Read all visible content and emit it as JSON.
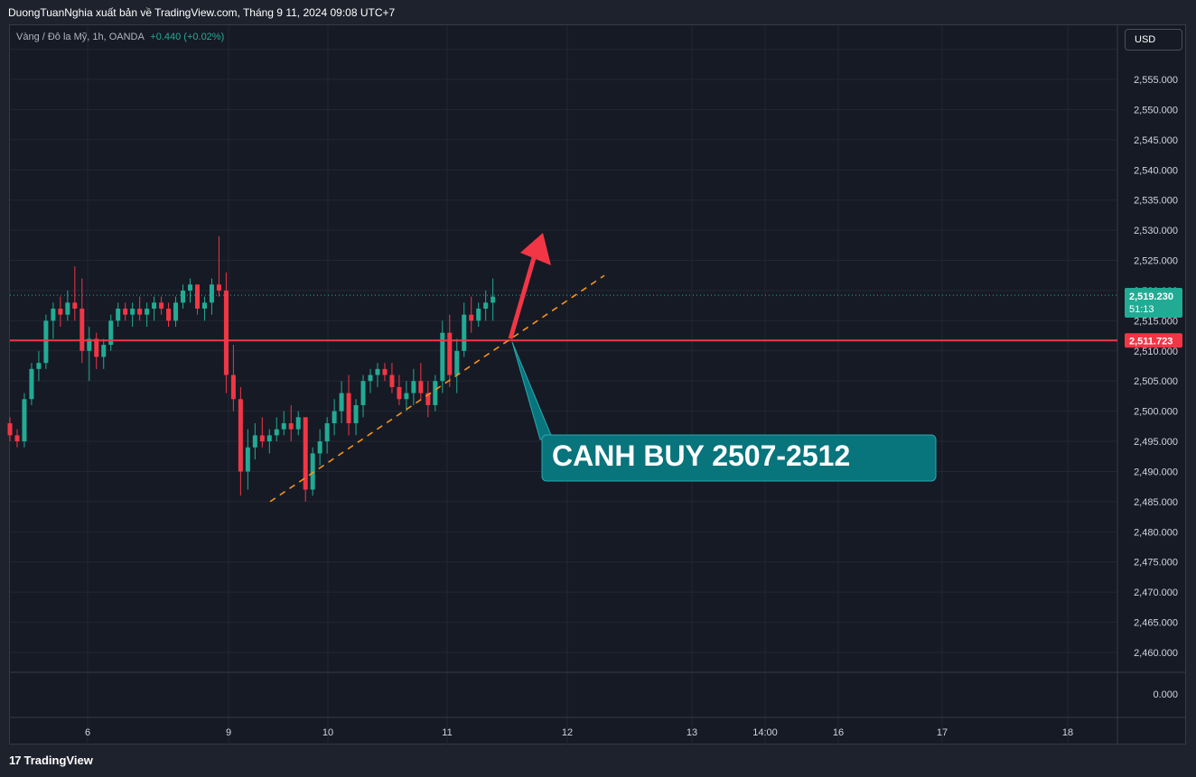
{
  "header": {
    "publish_line": "DuongTuanNghia xuất bản về TradingView.com, Tháng 9 11, 2024 09:08 UTC+7"
  },
  "legend": {
    "symbol": "Vàng / Đô la Mỹ, 1h, OANDA",
    "change": "+0.440 (+0.02%)"
  },
  "currency_button": "USD",
  "footer": {
    "brand": "TradingView",
    "logo_icon": "tradingview-logo-icon"
  },
  "colors": {
    "up": "#22ab94",
    "down": "#f23645",
    "support_line": "#f23645",
    "trendline": "#f7931a",
    "callout_bg": "#08747c",
    "arrow": "#f23645"
  },
  "chart_data": {
    "type": "candlestick",
    "y_axis": {
      "min": 2455,
      "max": 2560,
      "step": 5,
      "tick_labels": [
        "2,460.000",
        "2,465.000",
        "2,470.000",
        "2,475.000",
        "2,480.000",
        "2,485.000",
        "2,490.000",
        "2,495.000",
        "2,500.000",
        "2,505.000",
        "2,510.000",
        "2,515.000",
        "2,520.000",
        "2,525.000",
        "2,530.000",
        "2,535.000",
        "2,540.000",
        "2,545.000",
        "2,550.000",
        "2,555.000"
      ],
      "lower_pane_label": "0.000"
    },
    "x_axis": {
      "tick_labels": [
        "6",
        "9",
        "10",
        "11",
        "12",
        "13",
        "14:00",
        "16",
        "17",
        "18"
      ]
    },
    "price_labels": [
      {
        "value": "2,519.230",
        "sub": "51:13",
        "kind": "last"
      },
      {
        "value": "2,511.723",
        "kind": "horizontal-line"
      }
    ],
    "horizontal_line": 2511.723,
    "last_price": 2519.23,
    "trendline": {
      "from": [
        "9",
        2485
      ],
      "to": [
        "12",
        2522.5
      ]
    },
    "arrow": {
      "tip": 2530
    },
    "callout": {
      "text": "CANH BUY 2507-2512"
    },
    "candles": [
      [
        2498,
        2499,
        2495,
        2496
      ],
      [
        2496,
        2497,
        2494,
        2495
      ],
      [
        2495,
        2503,
        2494,
        2502
      ],
      [
        2502,
        2508,
        2501,
        2507
      ],
      [
        2507,
        2510,
        2505,
        2508
      ],
      [
        2508,
        2516,
        2507,
        2515
      ],
      [
        2515,
        2518,
        2512,
        2517
      ],
      [
        2517,
        2519,
        2514,
        2516
      ],
      [
        2516,
        2520,
        2515,
        2518
      ],
      [
        2518,
        2524,
        2515,
        2517
      ],
      [
        2517,
        2522,
        2508,
        2510
      ],
      [
        2510,
        2514,
        2505,
        2512
      ],
      [
        2512,
        2513,
        2507,
        2509
      ],
      [
        2509,
        2512,
        2507,
        2511
      ],
      [
        2511,
        2516,
        2510,
        2515
      ],
      [
        2515,
        2518,
        2514,
        2517
      ],
      [
        2517,
        2518,
        2515,
        2516
      ],
      [
        2516,
        2518,
        2514,
        2517
      ],
      [
        2517,
        2519,
        2515,
        2516
      ],
      [
        2516,
        2518,
        2514,
        2517
      ],
      [
        2517,
        2519,
        2515,
        2518
      ],
      [
        2518,
        2519,
        2516,
        2517
      ],
      [
        2517,
        2518,
        2514,
        2515
      ],
      [
        2515,
        2519,
        2514,
        2518
      ],
      [
        2518,
        2521,
        2517,
        2520
      ],
      [
        2520,
        2522,
        2518,
        2521
      ],
      [
        2521,
        2520,
        2516,
        2517
      ],
      [
        2517,
        2519,
        2515,
        2518
      ],
      [
        2518,
        2522,
        2516,
        2521
      ],
      [
        2521,
        2529,
        2519,
        2520
      ],
      [
        2520,
        2523,
        2503,
        2506
      ],
      [
        2506,
        2511,
        2500,
        2502
      ],
      [
        2502,
        2504,
        2486,
        2490
      ],
      [
        2490,
        2497,
        2487,
        2494
      ],
      [
        2494,
        2498,
        2492,
        2496
      ],
      [
        2496,
        2499,
        2494,
        2495
      ],
      [
        2495,
        2497,
        2493,
        2496
      ],
      [
        2496,
        2499,
        2495,
        2497
      ],
      [
        2497,
        2500,
        2496,
        2498
      ],
      [
        2498,
        2501,
        2495,
        2497
      ],
      [
        2497,
        2500,
        2496,
        2499
      ],
      [
        2499,
        2498,
        2485,
        2487
      ],
      [
        2487,
        2494,
        2486,
        2493
      ],
      [
        2493,
        2497,
        2491,
        2495
      ],
      [
        2495,
        2499,
        2493,
        2498
      ],
      [
        2498,
        2502,
        2496,
        2500
      ],
      [
        2500,
        2505,
        2498,
        2503
      ],
      [
        2503,
        2506,
        2496,
        2498
      ],
      [
        2498,
        2502,
        2496,
        2501
      ],
      [
        2501,
        2506,
        2499,
        2505
      ],
      [
        2505,
        2507,
        2503,
        2506
      ],
      [
        2506,
        2508,
        2504,
        2507
      ],
      [
        2507,
        2508,
        2505,
        2506
      ],
      [
        2506,
        2508,
        2503,
        2504
      ],
      [
        2504,
        2506,
        2501,
        2502
      ],
      [
        2502,
        2505,
        2500,
        2503
      ],
      [
        2503,
        2507,
        2501,
        2505
      ],
      [
        2505,
        2508,
        2502,
        2503
      ],
      [
        2503,
        2505,
        2499,
        2501
      ],
      [
        2501,
        2506,
        2500,
        2505
      ],
      [
        2505,
        2515,
        2503,
        2513
      ],
      [
        2513,
        2516,
        2504,
        2506
      ],
      [
        2506,
        2512,
        2503,
        2510
      ],
      [
        2510,
        2518,
        2509,
        2516
      ],
      [
        2516,
        2519,
        2513,
        2515
      ],
      [
        2515,
        2518,
        2514,
        2517
      ],
      [
        2517,
        2520,
        2515,
        2518
      ],
      [
        2518,
        2522,
        2515,
        2519
      ]
    ]
  }
}
